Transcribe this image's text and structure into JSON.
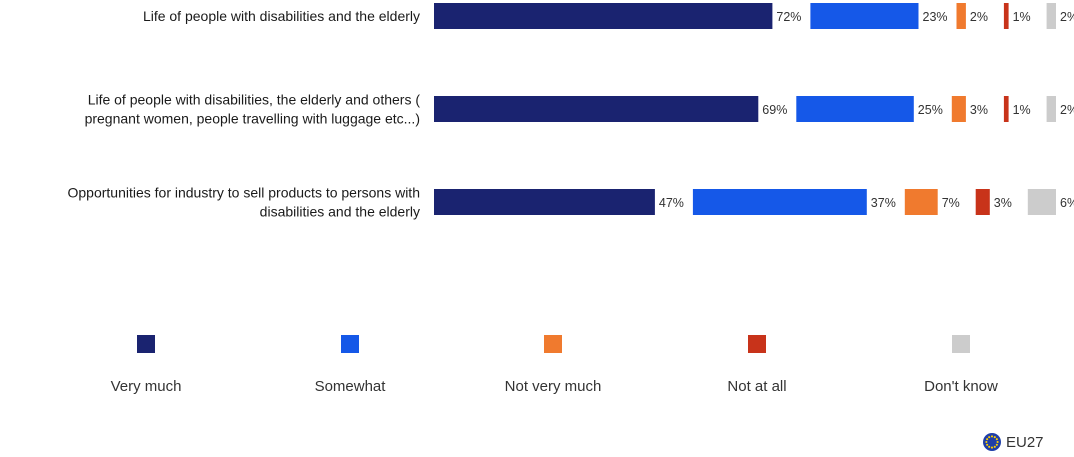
{
  "chart_data": {
    "type": "bar",
    "orientation": "horizontal",
    "stacked": true,
    "categories": [
      [
        "Life of people with disabilities and the elderly"
      ],
      [
        "Life of people with disabilities, the elderly and others (",
        "pregnant women, people travelling with luggage etc...)"
      ],
      [
        "Opportunities for industry to sell products to persons with",
        "disabilities and the elderly"
      ]
    ],
    "series": [
      {
        "name": "Very much",
        "values": [
          72,
          69,
          47
        ],
        "color": "#1a2370"
      },
      {
        "name": "Somewhat",
        "values": [
          23,
          25,
          37
        ],
        "color": "#1558e8"
      },
      {
        "name": "Not very much",
        "values": [
          2,
          3,
          7
        ],
        "color": "#f07a2e"
      },
      {
        "name": "Not at all",
        "values": [
          1,
          1,
          3
        ],
        "color": "#c8331a"
      },
      {
        "name": "Don't know",
        "values": [
          2,
          2,
          6
        ],
        "color": "#cccccc"
      }
    ],
    "value_suffix": "%",
    "legend_position": "bottom",
    "grid": false
  },
  "badge": {
    "icon": "eu-flag-icon",
    "label": "EU27"
  }
}
